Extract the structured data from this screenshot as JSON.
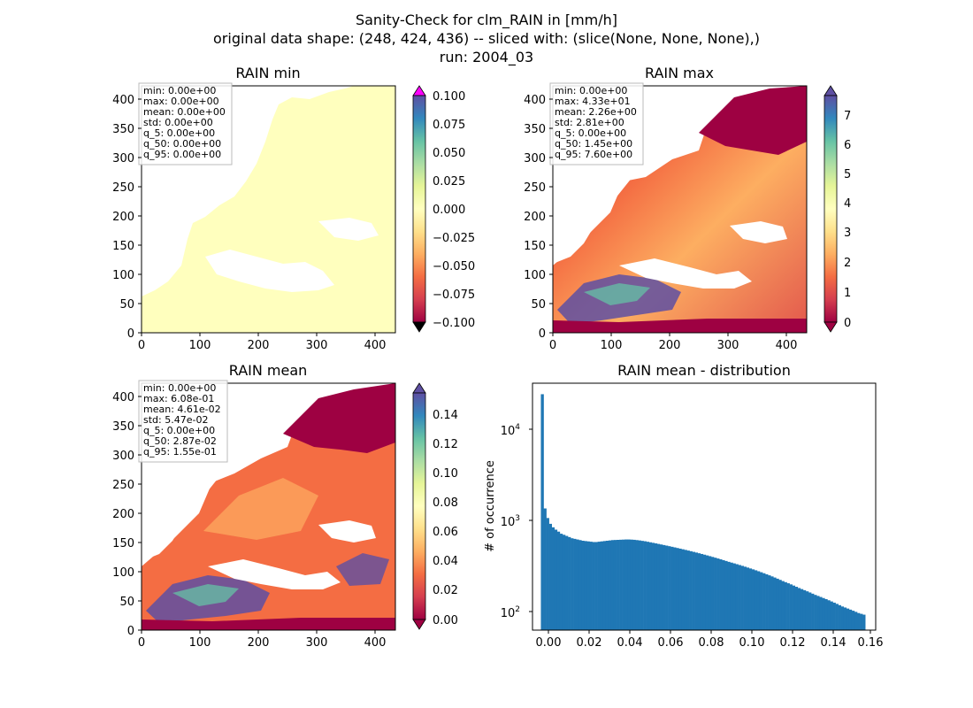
{
  "figure": {
    "title_lines": [
      "Sanity-Check for clm_RAIN in [mm/h]",
      "original data shape: (248, 424, 436) -- sliced with: (slice(None, None, None),)",
      "run: 2004_03"
    ]
  },
  "panels": {
    "min": {
      "title": "RAIN min",
      "stats": [
        "min: 0.00e+00",
        "max: 0.00e+00",
        "mean: 0.00e+00",
        "std: 0.00e+00",
        "q_5: 0.00e+00",
        "q_50: 0.00e+00",
        "q_95: 0.00e+00"
      ]
    },
    "max": {
      "title": "RAIN max",
      "stats": [
        "min: 0.00e+00",
        "max: 4.33e+01",
        "mean: 2.26e+00",
        "std: 2.81e+00",
        "q_5: 0.00e+00",
        "q_50: 1.45e+00",
        "q_95: 7.60e+00"
      ]
    },
    "mean": {
      "title": "RAIN mean",
      "stats": [
        "min: 0.00e+00",
        "max: 6.08e-01",
        "mean: 4.61e-02",
        "std: 5.47e-02",
        "q_5: 0.00e+00",
        "q_50: 2.87e-02",
        "q_95: 1.55e-01"
      ]
    },
    "dist": {
      "title": "RAIN mean - distribution",
      "ylabel": "# of occurrence"
    }
  },
  "map_axes": {
    "x_ticks": [
      "0",
      "100",
      "200",
      "300",
      "400"
    ],
    "y_ticks": [
      "0",
      "50",
      "100",
      "150",
      "200",
      "250",
      "300",
      "350",
      "400"
    ]
  },
  "colorbars": {
    "min": [
      "0.100",
      "0.075",
      "0.050",
      "0.025",
      "0.000",
      "−0.025",
      "−0.050",
      "−0.075",
      "−0.100"
    ],
    "max": [
      "7",
      "6",
      "5",
      "4",
      "3",
      "2",
      "1",
      "0"
    ],
    "mean": [
      "0.14",
      "0.12",
      "0.10",
      "0.08",
      "0.06",
      "0.04",
      "0.02",
      "0.00"
    ]
  },
  "hist_axes": {
    "x_ticks": [
      "0.00",
      "0.02",
      "0.04",
      "0.06",
      "0.08",
      "0.10",
      "0.12",
      "0.14",
      "0.16"
    ],
    "y_ticks": [
      "10",
      "10",
      "10"
    ],
    "y_tick_exponents": [
      "4",
      "3",
      "2"
    ]
  },
  "colors": {
    "bars": "#1f77b4",
    "uniform_field": "#ffffbe"
  },
  "chart_data": [
    {
      "type": "heatmap",
      "title": "RAIN min",
      "xlim": [
        0,
        436
      ],
      "ylim": [
        0,
        424
      ],
      "colorbar_range": [
        -0.1,
        0.1
      ],
      "colormap": "Spectral",
      "uniform_value": 0.0
    },
    {
      "type": "heatmap",
      "title": "RAIN max",
      "xlim": [
        0,
        436
      ],
      "ylim": [
        0,
        424
      ],
      "colorbar_range": [
        0,
        7.6
      ],
      "colormap": "Spectral"
    },
    {
      "type": "heatmap",
      "title": "RAIN mean",
      "xlim": [
        0,
        436
      ],
      "ylim": [
        0,
        424
      ],
      "colorbar_range": [
        0,
        0.155
      ],
      "colormap": "Spectral"
    },
    {
      "type": "bar",
      "title": "RAIN mean - distribution",
      "ylabel": "# of occurrence",
      "yscale": "log",
      "xlim": [
        -0.004,
        0.16
      ],
      "ylim": [
        65,
        33000
      ],
      "bins": {
        "start": 0,
        "end": 0.155,
        "count": 120
      },
      "counts": [
        25000,
        1400,
        1100,
        950,
        870,
        820,
        780,
        740,
        720,
        700,
        680,
        660,
        650,
        640,
        630,
        620,
        615,
        610,
        605,
        600,
        600,
        605,
        610,
        615,
        620,
        625,
        630,
        632,
        634,
        636,
        638,
        640,
        640,
        638,
        635,
        630,
        625,
        618,
        612,
        604,
        596,
        588,
        580,
        572,
        564,
        556,
        548,
        540,
        532,
        524,
        516,
        508,
        500,
        492,
        484,
        476,
        468,
        460,
        452,
        444,
        436,
        428,
        420,
        412,
        404,
        396,
        388,
        380,
        372,
        364,
        357,
        350,
        343,
        336,
        329,
        322,
        315,
        308,
        301,
        294,
        287,
        280,
        273,
        266,
        259,
        252,
        245,
        238,
        231,
        224,
        218,
        212,
        206,
        200,
        194,
        188,
        183,
        178,
        173,
        168,
        163,
        158,
        154,
        150,
        146,
        142,
        138,
        134,
        130,
        126,
        122,
        118,
        115,
        112,
        109,
        106,
        103,
        100,
        98,
        96
      ]
    }
  ]
}
